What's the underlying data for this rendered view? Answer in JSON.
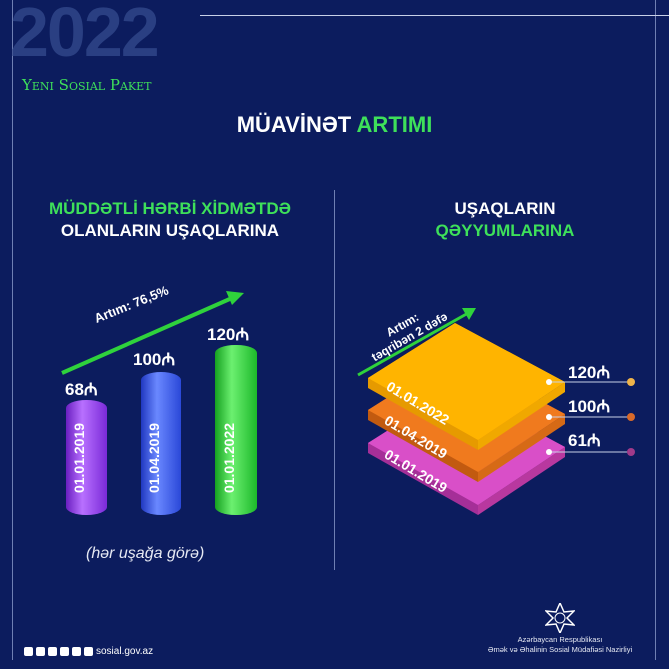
{
  "header": {
    "year": "2022",
    "brand": "Yeni Sosial Paket"
  },
  "title": {
    "part1": "MÜAVİNƏT",
    "part2": "ARTIMI"
  },
  "left": {
    "subtitle_line1": "MÜDDƏTLİ HƏRBİ XİDMƏTDƏ",
    "subtitle_line2": "OLANLARIN UŞAQLARINA",
    "growth": "Artım: 76,5%",
    "bars": [
      {
        "date": "01.01.2019",
        "value": "68₼",
        "amount": 68,
        "color": "#9b3ff0"
      },
      {
        "date": "01.04.2019",
        "value": "100₼",
        "amount": 100,
        "color": "#3a5af0"
      },
      {
        "date": "01.01.2022",
        "value": "120₼",
        "amount": 120,
        "color": "#2fd23c"
      }
    ],
    "note": "(hər uşağa görə)"
  },
  "right": {
    "subtitle_line1": "UŞAQLARIN",
    "subtitle_line2": "QƏYYUMLARINA",
    "growth_line1": "Artım:",
    "growth_line2": "təqribən 2 dəfə",
    "layers": [
      {
        "date": "01.01.2022",
        "value": "120₼",
        "color": "#ffb400"
      },
      {
        "date": "01.04.2019",
        "value": "100₼",
        "color": "#f07a1e"
      },
      {
        "date": "01.01.2019",
        "value": "61₼",
        "color": "#d94fc8"
      }
    ]
  },
  "footer": {
    "website": "sosial.gov.az",
    "ministry_line1": "Azərbaycan Respublikası",
    "ministry_line2": "Əmək və Əhalinin Sosial Müdafiəsi Nazirliyi"
  }
}
